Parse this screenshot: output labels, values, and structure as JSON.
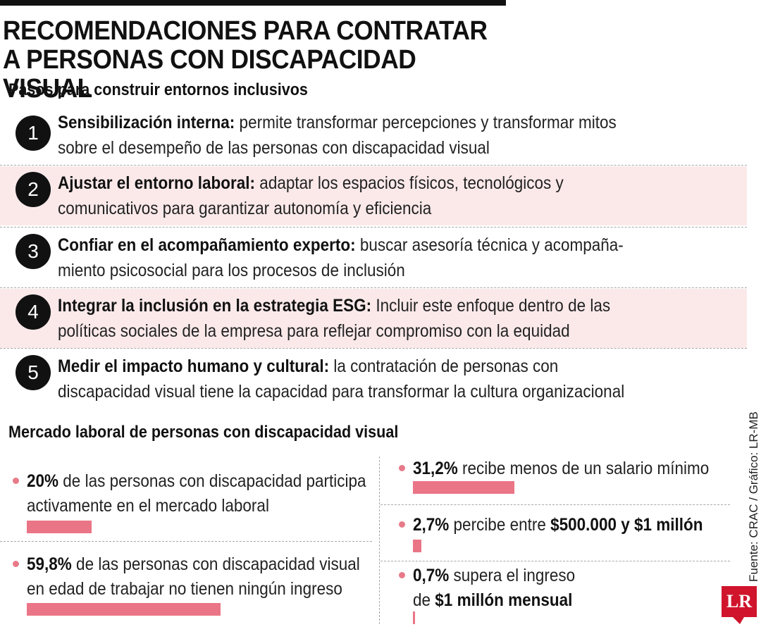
{
  "title": {
    "line1": "RECOMENDACIONES PARA CONTRATAR",
    "line2": "A PERSONAS CON DISCAPACIDAD VISUAL"
  },
  "steps_section": {
    "heading": "Pasos para construir entornos inclusivos",
    "steps": [
      {
        "number": "1",
        "bold": "Sensibilización interna:",
        "line1": " permite transformar percepciones y transformar mitos",
        "line2": "sobre el desempeño de las personas con discapacidad visual"
      },
      {
        "number": "2",
        "bold": "Ajustar el entorno laboral:",
        "line1": " adaptar los espacios físicos, tecnológicos y",
        "line2": "comunicativos para garantizar autonomía y eficiencia"
      },
      {
        "number": "3",
        "bold": "Confiar en el acompañamiento experto:",
        "line1": " buscar asesoría técnica y acompaña-",
        "line2": "miento psicosocial para los procesos de inclusión"
      },
      {
        "number": "4",
        "bold": "Integrar la inclusión en la estrategia ESG:",
        "line1": " Incluir este enfoque dentro de las",
        "line2": "políticas sociales de la empresa para reflejar compromiso con la equidad"
      },
      {
        "number": "5",
        "bold": "Medir el impacto humano y cultural:",
        "line1": " la contratación de personas con",
        "line2": "discapacidad visual tiene la capacidad para transformar la cultura organizacional"
      }
    ]
  },
  "market_section": {
    "heading": "Mercado laboral de personas con discapacidad visual",
    "stats": [
      {
        "pct": "20%",
        "line1": " de las personas con discapacidad participa",
        "line2": "activamente en el mercado laboral",
        "value": 20
      },
      {
        "pct": "59,8%",
        "line1": " de las personas con discapacidad visual",
        "line2": "en edad de trabajar no tienen ningún ingreso",
        "value": 59.8
      },
      {
        "pct": "31,2%",
        "line1": " recibe menos de un salario mínimo",
        "value": 31.2
      },
      {
        "pct": "2,7%",
        "line1": " percibe entre ",
        "bold_tail": "$500.000 y $1 millón",
        "value": 2.7
      },
      {
        "pct": "0,7%",
        "line1": " supera el ingreso",
        "line2_prefix": "de ",
        "line2_bold": "$1 millón mensual",
        "value": 0.7
      }
    ]
  },
  "credit": "Fuente: CRAC / Gráfico: LR-MB",
  "logo": "LR",
  "colors": {
    "accent": "#ea7586",
    "shade": "#fbe9ea",
    "logo": "#d0142c"
  }
}
